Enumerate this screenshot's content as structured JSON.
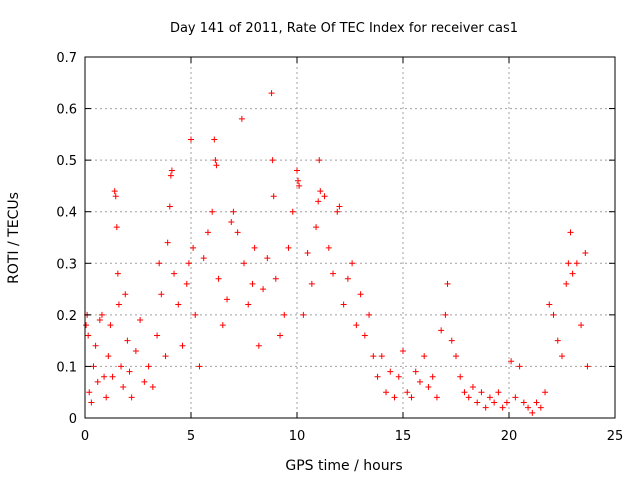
{
  "chart_data": {
    "type": "scatter",
    "title": "Day 141 of 2011, Rate Of TEC Index for receiver cas1",
    "xlabel": "GPS time / hours",
    "ylabel": "ROTI / TECUs",
    "xlim": [
      0,
      25
    ],
    "ylim": [
      0,
      0.7
    ],
    "xticks": [
      0,
      5,
      10,
      15,
      20,
      25
    ],
    "yticks": [
      0,
      0.1,
      0.2,
      0.3,
      0.4,
      0.5,
      0.6,
      0.7
    ],
    "xtick_labels": [
      "0",
      "5",
      "10",
      "15",
      "20",
      "25"
    ],
    "ytick_labels": [
      "0",
      "0.1",
      "0.2",
      "0.3",
      "0.4",
      "0.5",
      "0.6",
      "0.7"
    ],
    "grid": true,
    "marker": "+",
    "color": "#ff0000",
    "series": [
      {
        "name": "ROTI",
        "points": [
          [
            0.05,
            0.18
          ],
          [
            0.1,
            0.2
          ],
          [
            0.15,
            0.16
          ],
          [
            0.2,
            0.05
          ],
          [
            0.3,
            0.03
          ],
          [
            0.4,
            0.1
          ],
          [
            0.5,
            0.14
          ],
          [
            0.6,
            0.07
          ],
          [
            0.7,
            0.19
          ],
          [
            0.8,
            0.2
          ],
          [
            0.9,
            0.08
          ],
          [
            1.0,
            0.04
          ],
          [
            1.1,
            0.12
          ],
          [
            1.2,
            0.18
          ],
          [
            1.3,
            0.08
          ],
          [
            1.4,
            0.44
          ],
          [
            1.45,
            0.43
          ],
          [
            1.5,
            0.37
          ],
          [
            1.55,
            0.28
          ],
          [
            1.6,
            0.22
          ],
          [
            1.7,
            0.1
          ],
          [
            1.8,
            0.06
          ],
          [
            1.9,
            0.24
          ],
          [
            2.0,
            0.15
          ],
          [
            2.1,
            0.09
          ],
          [
            2.2,
            0.04
          ],
          [
            2.4,
            0.13
          ],
          [
            2.6,
            0.19
          ],
          [
            2.8,
            0.07
          ],
          [
            3.0,
            0.1
          ],
          [
            3.2,
            0.06
          ],
          [
            3.4,
            0.16
          ],
          [
            3.5,
            0.3
          ],
          [
            3.6,
            0.24
          ],
          [
            3.8,
            0.12
          ],
          [
            3.9,
            0.34
          ],
          [
            4.0,
            0.41
          ],
          [
            4.05,
            0.47
          ],
          [
            4.1,
            0.48
          ],
          [
            4.2,
            0.28
          ],
          [
            4.4,
            0.22
          ],
          [
            4.6,
            0.14
          ],
          [
            4.8,
            0.26
          ],
          [
            4.9,
            0.3
          ],
          [
            5.0,
            0.54
          ],
          [
            5.1,
            0.33
          ],
          [
            5.2,
            0.2
          ],
          [
            5.4,
            0.1
          ],
          [
            5.6,
            0.31
          ],
          [
            5.8,
            0.36
          ],
          [
            6.0,
            0.4
          ],
          [
            6.1,
            0.54
          ],
          [
            6.15,
            0.5
          ],
          [
            6.2,
            0.49
          ],
          [
            6.3,
            0.27
          ],
          [
            6.5,
            0.18
          ],
          [
            6.7,
            0.23
          ],
          [
            6.9,
            0.38
          ],
          [
            7.0,
            0.4
          ],
          [
            7.2,
            0.36
          ],
          [
            7.4,
            0.58
          ],
          [
            7.5,
            0.3
          ],
          [
            7.7,
            0.22
          ],
          [
            7.9,
            0.26
          ],
          [
            8.0,
            0.33
          ],
          [
            8.2,
            0.14
          ],
          [
            8.4,
            0.25
          ],
          [
            8.6,
            0.31
          ],
          [
            8.8,
            0.63
          ],
          [
            8.85,
            0.5
          ],
          [
            8.9,
            0.43
          ],
          [
            9.0,
            0.27
          ],
          [
            9.2,
            0.16
          ],
          [
            9.4,
            0.2
          ],
          [
            9.6,
            0.33
          ],
          [
            9.8,
            0.4
          ],
          [
            10.0,
            0.48
          ],
          [
            10.05,
            0.46
          ],
          [
            10.1,
            0.45
          ],
          [
            10.3,
            0.2
          ],
          [
            10.5,
            0.32
          ],
          [
            10.7,
            0.26
          ],
          [
            10.9,
            0.37
          ],
          [
            11.0,
            0.42
          ],
          [
            11.05,
            0.5
          ],
          [
            11.1,
            0.44
          ],
          [
            11.3,
            0.43
          ],
          [
            11.5,
            0.33
          ],
          [
            11.7,
            0.28
          ],
          [
            11.9,
            0.4
          ],
          [
            12.0,
            0.41
          ],
          [
            12.2,
            0.22
          ],
          [
            12.4,
            0.27
          ],
          [
            12.6,
            0.3
          ],
          [
            12.8,
            0.18
          ],
          [
            13.0,
            0.24
          ],
          [
            13.2,
            0.16
          ],
          [
            13.4,
            0.2
          ],
          [
            13.6,
            0.12
          ],
          [
            13.8,
            0.08
          ],
          [
            14.0,
            0.12
          ],
          [
            14.2,
            0.05
          ],
          [
            14.4,
            0.09
          ],
          [
            14.6,
            0.04
          ],
          [
            14.8,
            0.08
          ],
          [
            15.0,
            0.13
          ],
          [
            15.2,
            0.05
          ],
          [
            15.4,
            0.04
          ],
          [
            15.6,
            0.09
          ],
          [
            15.8,
            0.07
          ],
          [
            16.0,
            0.12
          ],
          [
            16.2,
            0.06
          ],
          [
            16.4,
            0.08
          ],
          [
            16.6,
            0.04
          ],
          [
            16.8,
            0.17
          ],
          [
            17.0,
            0.2
          ],
          [
            17.1,
            0.26
          ],
          [
            17.3,
            0.15
          ],
          [
            17.5,
            0.12
          ],
          [
            17.7,
            0.08
          ],
          [
            17.9,
            0.05
          ],
          [
            18.1,
            0.04
          ],
          [
            18.3,
            0.06
          ],
          [
            18.5,
            0.03
          ],
          [
            18.7,
            0.05
          ],
          [
            18.9,
            0.02
          ],
          [
            19.1,
            0.04
          ],
          [
            19.3,
            0.03
          ],
          [
            19.5,
            0.05
          ],
          [
            19.7,
            0.02
          ],
          [
            19.9,
            0.03
          ],
          [
            20.1,
            0.11
          ],
          [
            20.3,
            0.04
          ],
          [
            20.5,
            0.1
          ],
          [
            20.7,
            0.03
          ],
          [
            20.9,
            0.02
          ],
          [
            21.1,
            0.01
          ],
          [
            21.3,
            0.03
          ],
          [
            21.5,
            0.02
          ],
          [
            21.7,
            0.05
          ],
          [
            21.9,
            0.22
          ],
          [
            22.1,
            0.2
          ],
          [
            22.3,
            0.15
          ],
          [
            22.5,
            0.12
          ],
          [
            22.7,
            0.26
          ],
          [
            22.8,
            0.3
          ],
          [
            22.9,
            0.36
          ],
          [
            23.0,
            0.28
          ],
          [
            23.2,
            0.3
          ],
          [
            23.4,
            0.18
          ],
          [
            23.6,
            0.32
          ],
          [
            23.7,
            0.1
          ]
        ]
      }
    ]
  }
}
